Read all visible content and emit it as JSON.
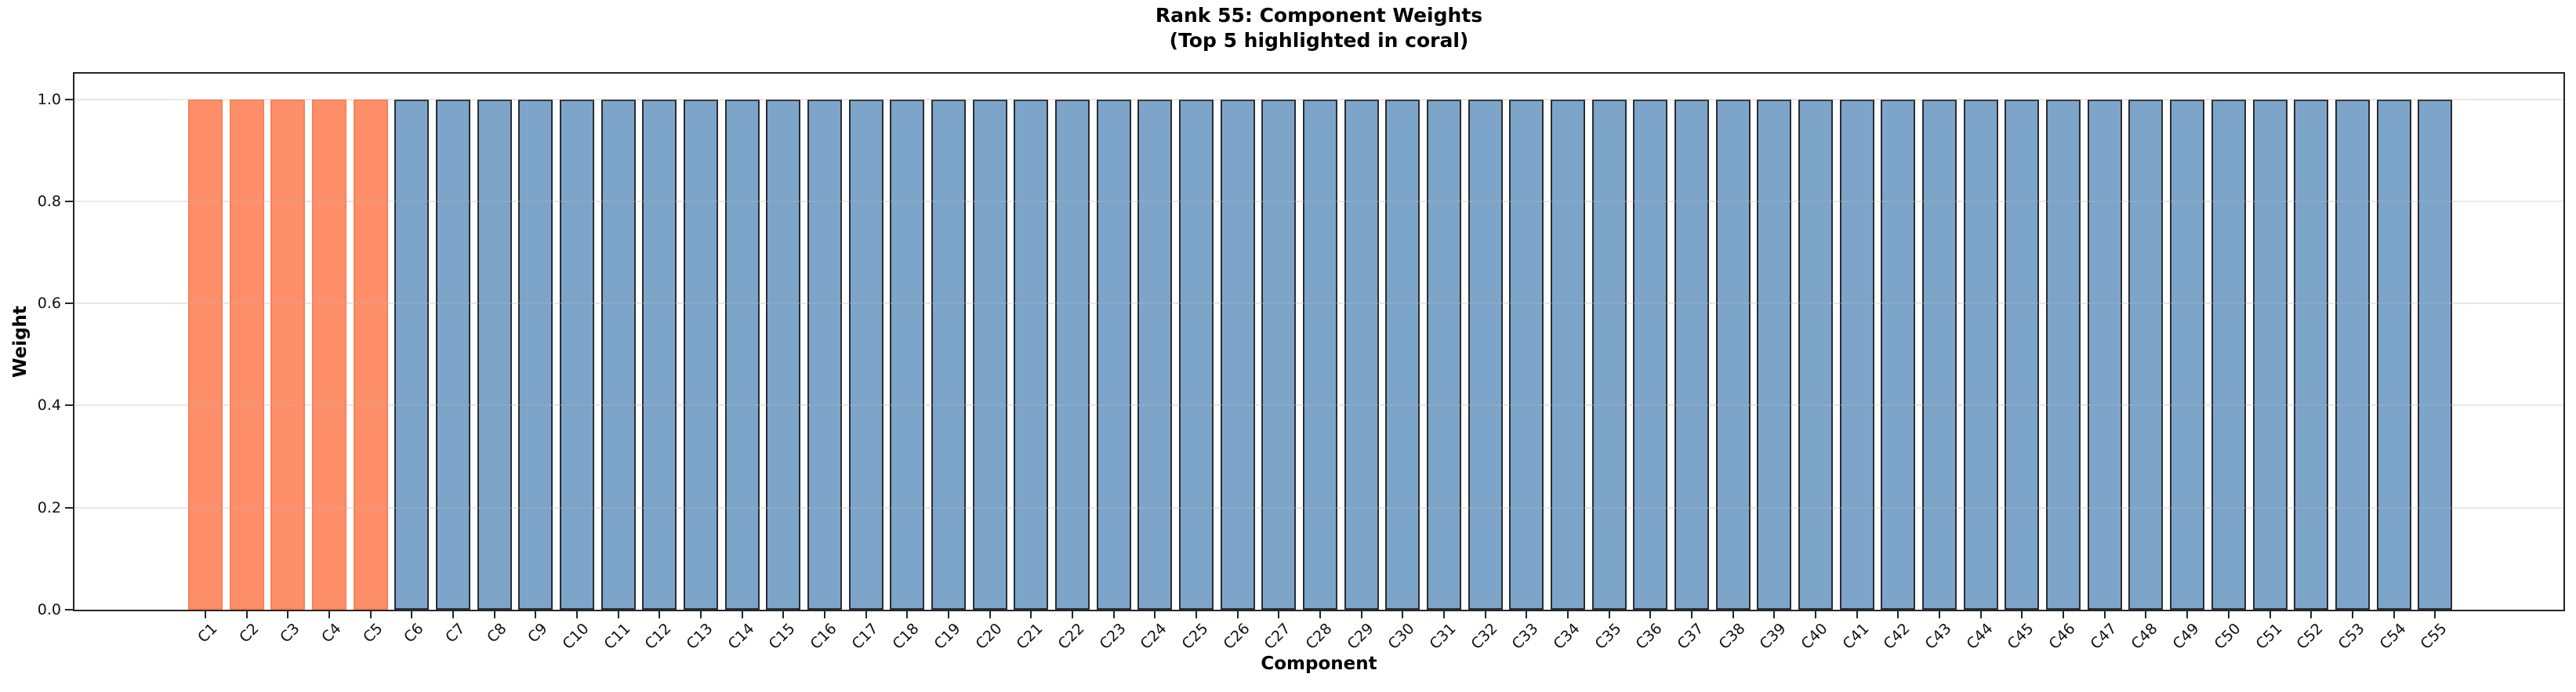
{
  "chart_data": {
    "type": "bar",
    "title": "Rank 55: Component Weights",
    "subtitle": "(Top 5 highlighted in coral)",
    "xlabel": "Component",
    "ylabel": "Weight",
    "categories": [
      "C1",
      "C2",
      "C3",
      "C4",
      "C5",
      "C6",
      "C7",
      "C8",
      "C9",
      "C10",
      "C11",
      "C12",
      "C13",
      "C14",
      "C15",
      "C16",
      "C17",
      "C18",
      "C19",
      "C20",
      "C21",
      "C22",
      "C23",
      "C24",
      "C25",
      "C26",
      "C27",
      "C28",
      "C29",
      "C30",
      "C31",
      "C32",
      "C33",
      "C34",
      "C35",
      "C36",
      "C37",
      "C38",
      "C39",
      "C40",
      "C41",
      "C42",
      "C43",
      "C44",
      "C45",
      "C46",
      "C47",
      "C48",
      "C49",
      "C50",
      "C51",
      "C52",
      "C53",
      "C54",
      "C55"
    ],
    "values": [
      1.0,
      1.0,
      1.0,
      1.0,
      1.0,
      1.0,
      1.0,
      1.0,
      1.0,
      1.0,
      1.0,
      1.0,
      1.0,
      1.0,
      1.0,
      1.0,
      1.0,
      1.0,
      1.0,
      1.0,
      1.0,
      1.0,
      1.0,
      1.0,
      1.0,
      1.0,
      1.0,
      1.0,
      1.0,
      1.0,
      1.0,
      1.0,
      1.0,
      1.0,
      1.0,
      1.0,
      1.0,
      1.0,
      1.0,
      1.0,
      1.0,
      1.0,
      1.0,
      1.0,
      1.0,
      1.0,
      1.0,
      1.0,
      1.0,
      1.0,
      1.0,
      1.0,
      1.0,
      1.0,
      1.0
    ],
    "highlight_count": 5,
    "highlighted_categories": [
      "C1",
      "C2",
      "C3",
      "C4",
      "C5"
    ],
    "colors": {
      "default_bar_fill": "#7CA5C9",
      "default_bar_edge": "#2B2D33",
      "highlight_bar_fill": "#FF8F69",
      "highlight_bar_edge": "#FA8156",
      "spine": "#262626",
      "gridline": "#E9E9E9"
    },
    "ylim": [
      0,
      1.05
    ],
    "yticks": [
      0.0,
      0.2,
      0.4,
      0.6,
      0.8,
      1.0
    ],
    "ytick_labels": [
      "0.0",
      "0.2",
      "0.4",
      "0.6",
      "0.8",
      "1.0"
    ],
    "grid": "horizontal",
    "legend": "none"
  }
}
